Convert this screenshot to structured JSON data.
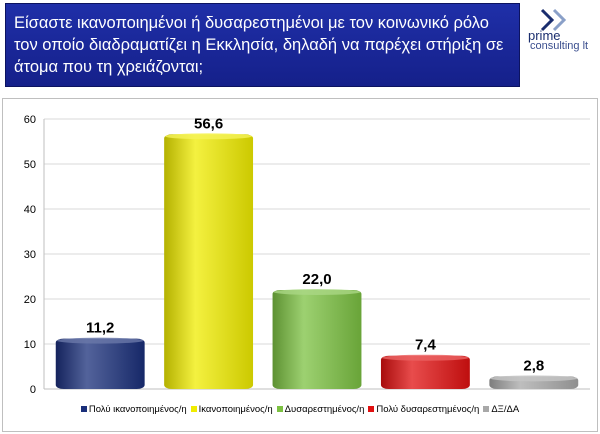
{
  "title": "Είσαστε ικανοποιημένοι ή δυσαρεστημένοι με τον κοινωνικό ρόλο τον οποίο διαδραματίζει η Εκκλησία, δηλαδή να παρέχει στήριξη σε άτομα που τη χρειάζονται;",
  "logo": {
    "line1": "prime",
    "line2": "consulting lt"
  },
  "chart_data": {
    "type": "bar",
    "categories": [
      "Πολύ ικανοποιημένος/η",
      "Ικανοποιημένος/η",
      "Δυσαρεστημένος/η",
      "Πολύ δυσαρεστημένος/η",
      "ΔΞ/ΔΑ"
    ],
    "values": [
      11.2,
      56.6,
      22.0,
      7.4,
      2.8
    ],
    "data_labels": [
      "11,2",
      "56,6",
      "22,0",
      "7,4",
      "2,8"
    ],
    "colors": [
      "#1a2f7a",
      "#f0ec00",
      "#7cc142",
      "#e01010",
      "#a8a8a8"
    ],
    "ylim": [
      0,
      60
    ],
    "yticks": [
      0,
      10,
      20,
      30,
      40,
      50,
      60
    ],
    "grid": true,
    "legend_position": "bottom"
  }
}
